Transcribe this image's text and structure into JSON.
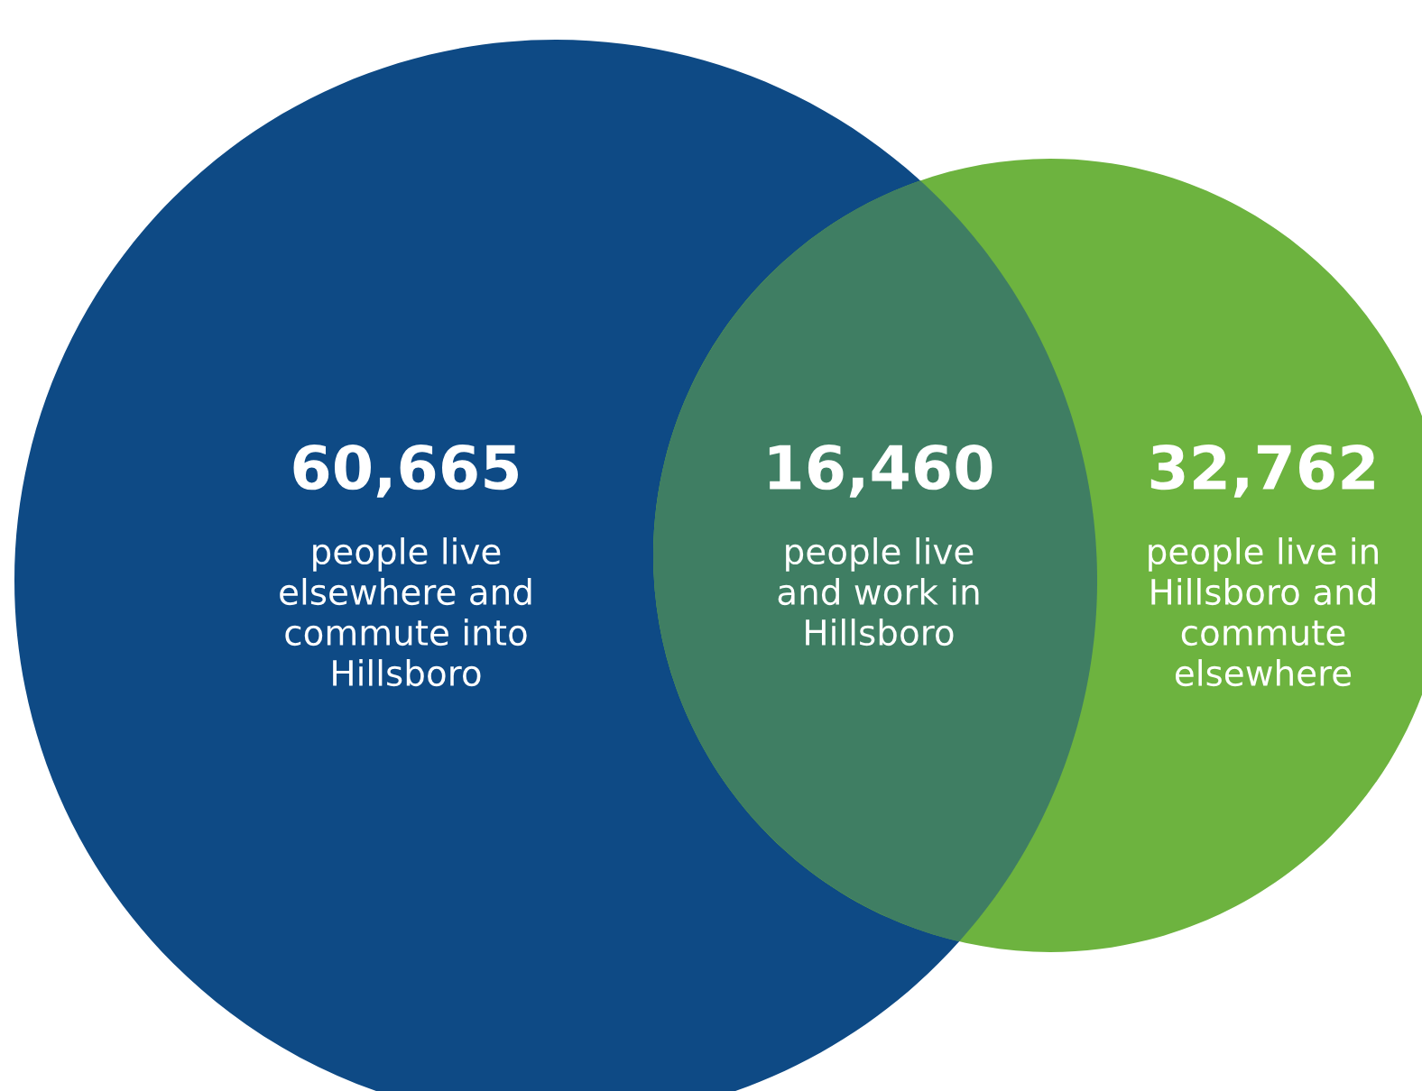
{
  "chart_data": {
    "type": "other",
    "categories": [
      "people live elsewhere and commute into Hillsboro",
      "people live and work in Hillsboro",
      "people live in Hillsboro and commute elsewhere"
    ],
    "values": [
      60665,
      16460,
      32762
    ],
    "value_labels": [
      "60,665",
      "16,460",
      "32,762"
    ],
    "colors": [
      "#0e4a85",
      "#3f7e63",
      "#6db33f"
    ]
  }
}
